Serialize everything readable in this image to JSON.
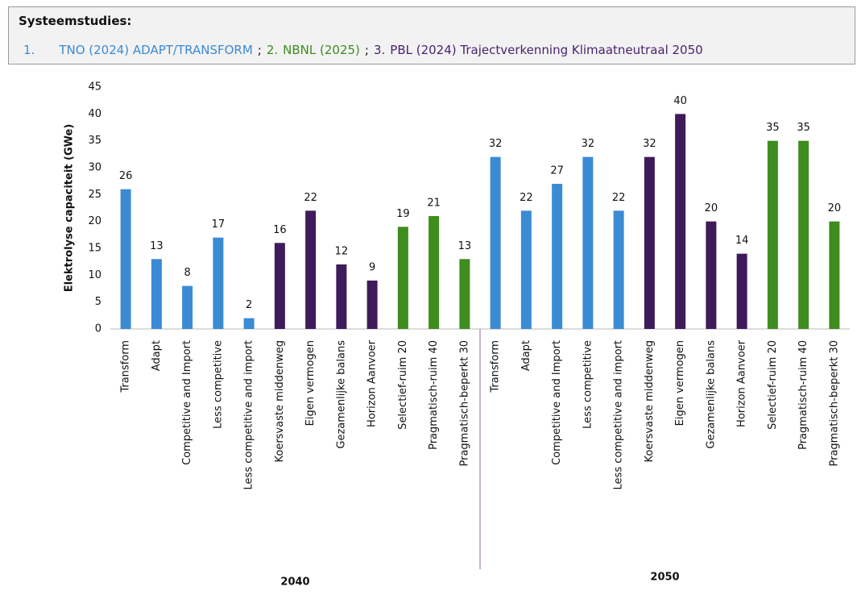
{
  "header": {
    "title": "Systeemstudies:",
    "separator": ";",
    "sources": [
      {
        "label": "1.",
        "text": "TNO (2024) ADAPT/TRANSFORM",
        "color": "#3b8bd4"
      },
      {
        "label": "2.",
        "text": "NBNL (2025)",
        "color": "#3f8c1f"
      },
      {
        "label": "3.",
        "text": "PBL (2024) Trajectverkenning Klimaatneutraal 2050",
        "color": "#4a2370"
      }
    ]
  },
  "chart_data": {
    "type": "bar",
    "ylabel": "Elektrolyse capaciteit (GWe)",
    "categories": [
      "Transform",
      "Adapt",
      "Competitive and Import",
      "Less competitive",
      "Less competitive and import",
      "Koersvaste middenweg",
      "Eigen vermogen",
      "Gezamenlijke balans",
      "Horizon Aanvoer",
      "Selectief-ruim 20",
      "Pragmatisch-ruim 40",
      "Pragmatisch-beperkt 30",
      "Transform",
      "Adapt",
      "Competitive and Import",
      "Less competitive",
      "Less competitive and import",
      "Koersvaste middenweg",
      "Eigen vermogen",
      "Gezamenlijke balans",
      "Horizon Aanvoer",
      "Selectief-ruim 20",
      "Pragmatisch-ruim 40",
      "Pragmatisch-beperkt 30"
    ],
    "values": [
      26,
      13,
      8,
      17,
      2,
      16,
      22,
      12,
      9,
      19,
      21,
      13,
      32,
      22,
      27,
      32,
      22,
      32,
      40,
      20,
      14,
      35,
      35,
      20
    ],
    "colors": [
      "#3b8bd4",
      "#3b8bd4",
      "#3b8bd4",
      "#3b8bd4",
      "#3b8bd4",
      "#3f1b5b",
      "#3f1b5b",
      "#3f1b5b",
      "#3f1b5b",
      "#3f8c1f",
      "#3f8c1f",
      "#3f8c1f",
      "#3b8bd4",
      "#3b8bd4",
      "#3b8bd4",
      "#3b8bd4",
      "#3b8bd4",
      "#3f1b5b",
      "#3f1b5b",
      "#3f1b5b",
      "#3f1b5b",
      "#3f8c1f",
      "#3f8c1f",
      "#3f8c1f"
    ],
    "groups": [
      {
        "label": "2040"
      },
      {
        "label": "2050"
      }
    ],
    "ylim": [
      0,
      45
    ],
    "yticks": [
      0,
      5,
      10,
      15,
      20,
      25,
      30,
      35,
      40,
      45
    ],
    "grid": false
  }
}
